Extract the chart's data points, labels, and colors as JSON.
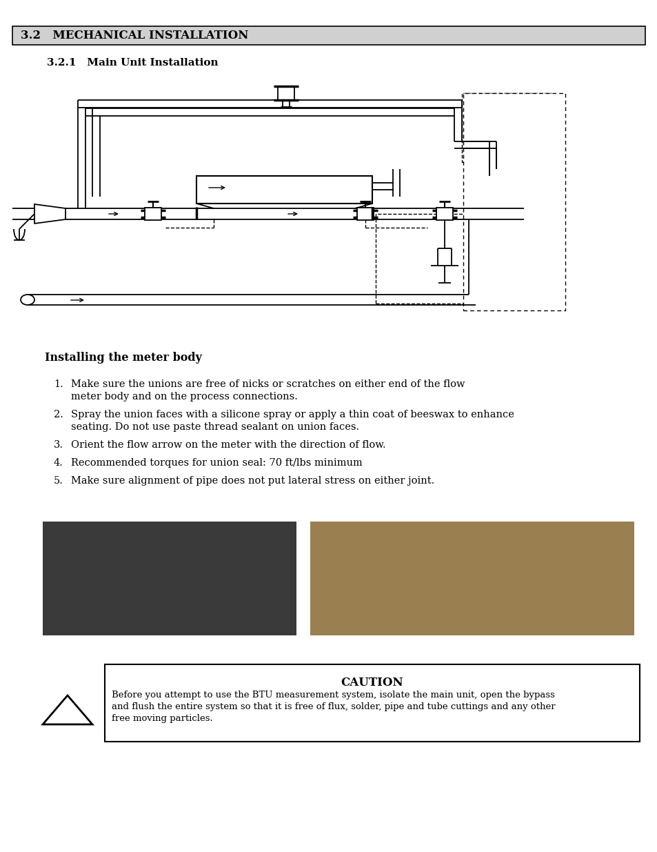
{
  "title_section": "3.2   MECHANICAL INSTALLATION",
  "subtitle": "3.2.1   Main Unit Installation",
  "section_bg": "#d0d0d0",
  "installing_header": "Installing the meter body",
  "list_items": [
    [
      "Make sure the unions are free of nicks or scratches on either end of the flow",
      "meter body and on the process connections."
    ],
    [
      "Spray the union faces with a silicone spray or apply a thin coat of beeswax to enhance",
      "seating. Do not use paste thread sealant on union faces."
    ],
    [
      "Orient the flow arrow on the meter with the direction of flow."
    ],
    [
      "Recommended torques for union seal: 70 ft/lbs minimum"
    ],
    [
      "Make sure alignment of pipe does not put lateral stress on either joint."
    ]
  ],
  "caution_title": "CAUTION",
  "caution_lines": [
    "Before you attempt to use the BTU measurement system, isolate the main unit, open the bypass",
    "and flush the entire system so that it is free of flux, solder, pipe and tube cuttings and any other",
    "free moving particles."
  ],
  "bg_color": "#ffffff",
  "text_color": "#000000",
  "lw": 1.3
}
